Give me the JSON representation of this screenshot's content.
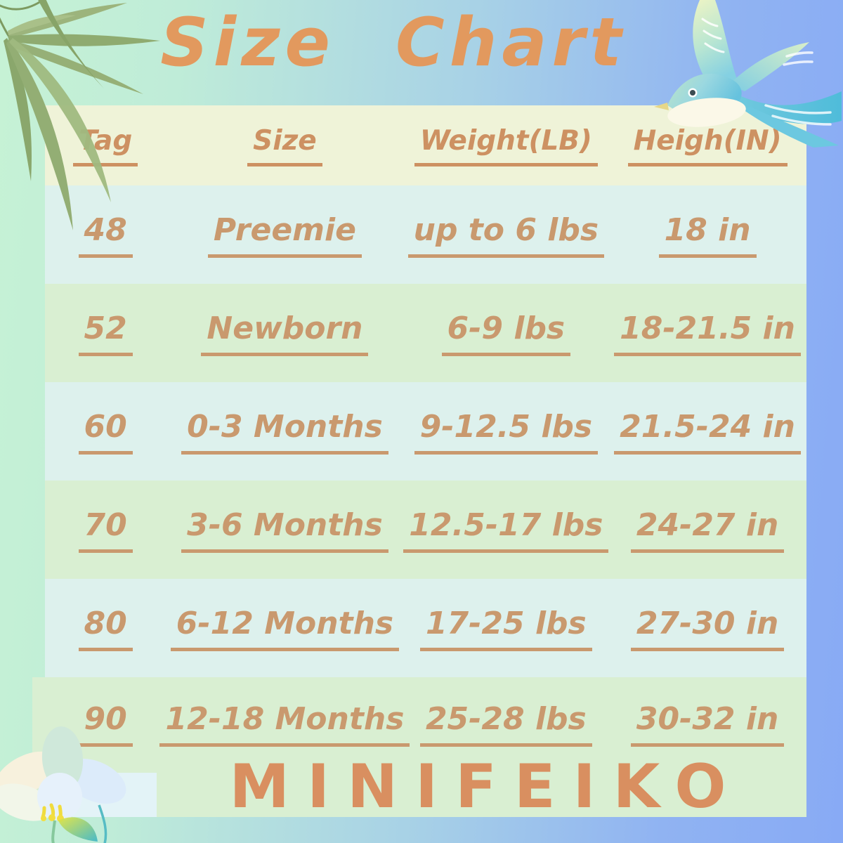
{
  "title": "Size Chart",
  "brand": "MINIFEIKO",
  "chart_data": {
    "type": "table",
    "title": "Size Chart",
    "columns": [
      "Tag",
      "Size",
      "Weight(LB)",
      "Heigh(IN)"
    ],
    "rows": [
      [
        "48",
        "Preemie",
        "up to 6 lbs",
        "18 in"
      ],
      [
        "52",
        "Newborn",
        "6-9 lbs",
        "18-21.5 in"
      ],
      [
        "60",
        "0-3 Months",
        "9-12.5 lbs",
        "21.5-24 in"
      ],
      [
        "70",
        "3-6 Months",
        "12.5-17 lbs",
        "24-27 in"
      ],
      [
        "80",
        "6-12 Months",
        "17-25 lbs",
        "27-30 in"
      ],
      [
        "90",
        "12-18 Months",
        "25-28 lbs",
        "30-32 in"
      ]
    ],
    "brand": "MINIFEIKO",
    "layout": {
      "header_row_striped": false,
      "row_stripe_pattern": [
        "blue",
        "green",
        "blue",
        "green",
        "blue",
        "green"
      ]
    }
  },
  "decorations": [
    {
      "icon": "bamboo-leaves-icon",
      "position": "top-left"
    },
    {
      "icon": "swallow-bird-icon",
      "position": "top-right"
    },
    {
      "icon": "flower-icon",
      "position": "bottom-left"
    }
  ],
  "colors": {
    "title_text": "#e2995e",
    "table_text": "#c9996e",
    "header_text": "#cd9162",
    "brand_text": "#d98f60",
    "header_row_bg": "#eff3d8",
    "row_blue_bg": "#ddf1ed",
    "row_green_bg": "#d9efd2",
    "bg_gradient_left": "#c6f2d5",
    "bg_gradient_right": "#88aaf5"
  }
}
